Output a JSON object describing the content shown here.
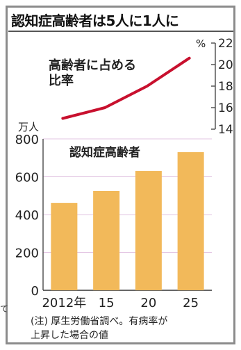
{
  "edge_mark": "て",
  "chart_data": {
    "type": "bar",
    "title": "認知症高齢者は5人に1人に",
    "categories": [
      "2012年",
      "15",
      "20",
      "25"
    ],
    "series": [
      {
        "name": "認知症高齢者",
        "type": "bar",
        "axis": "left",
        "values": [
          462,
          525,
          631,
          730
        ],
        "color": "#f2b95a"
      },
      {
        "name": "高齢者に占める比率",
        "name_lines": [
          "高齢者に占める",
          "比率"
        ],
        "type": "line",
        "axis": "right",
        "values": [
          15.0,
          16.0,
          18.0,
          20.6
        ],
        "color": "#c8102e"
      }
    ],
    "y_left": {
      "unit": "万人",
      "range": [
        0,
        800
      ],
      "ticks": [
        "0",
        "200",
        "400",
        "600",
        "800"
      ]
    },
    "y_right": {
      "unit": "%",
      "range": [
        14,
        22
      ],
      "ticks": [
        "14",
        "16",
        "18",
        "20",
        "22"
      ]
    },
    "grid": true,
    "note_lines": [
      "(注) 厚生労働省調べ。有病率が",
      "上昇した場合の値"
    ]
  }
}
